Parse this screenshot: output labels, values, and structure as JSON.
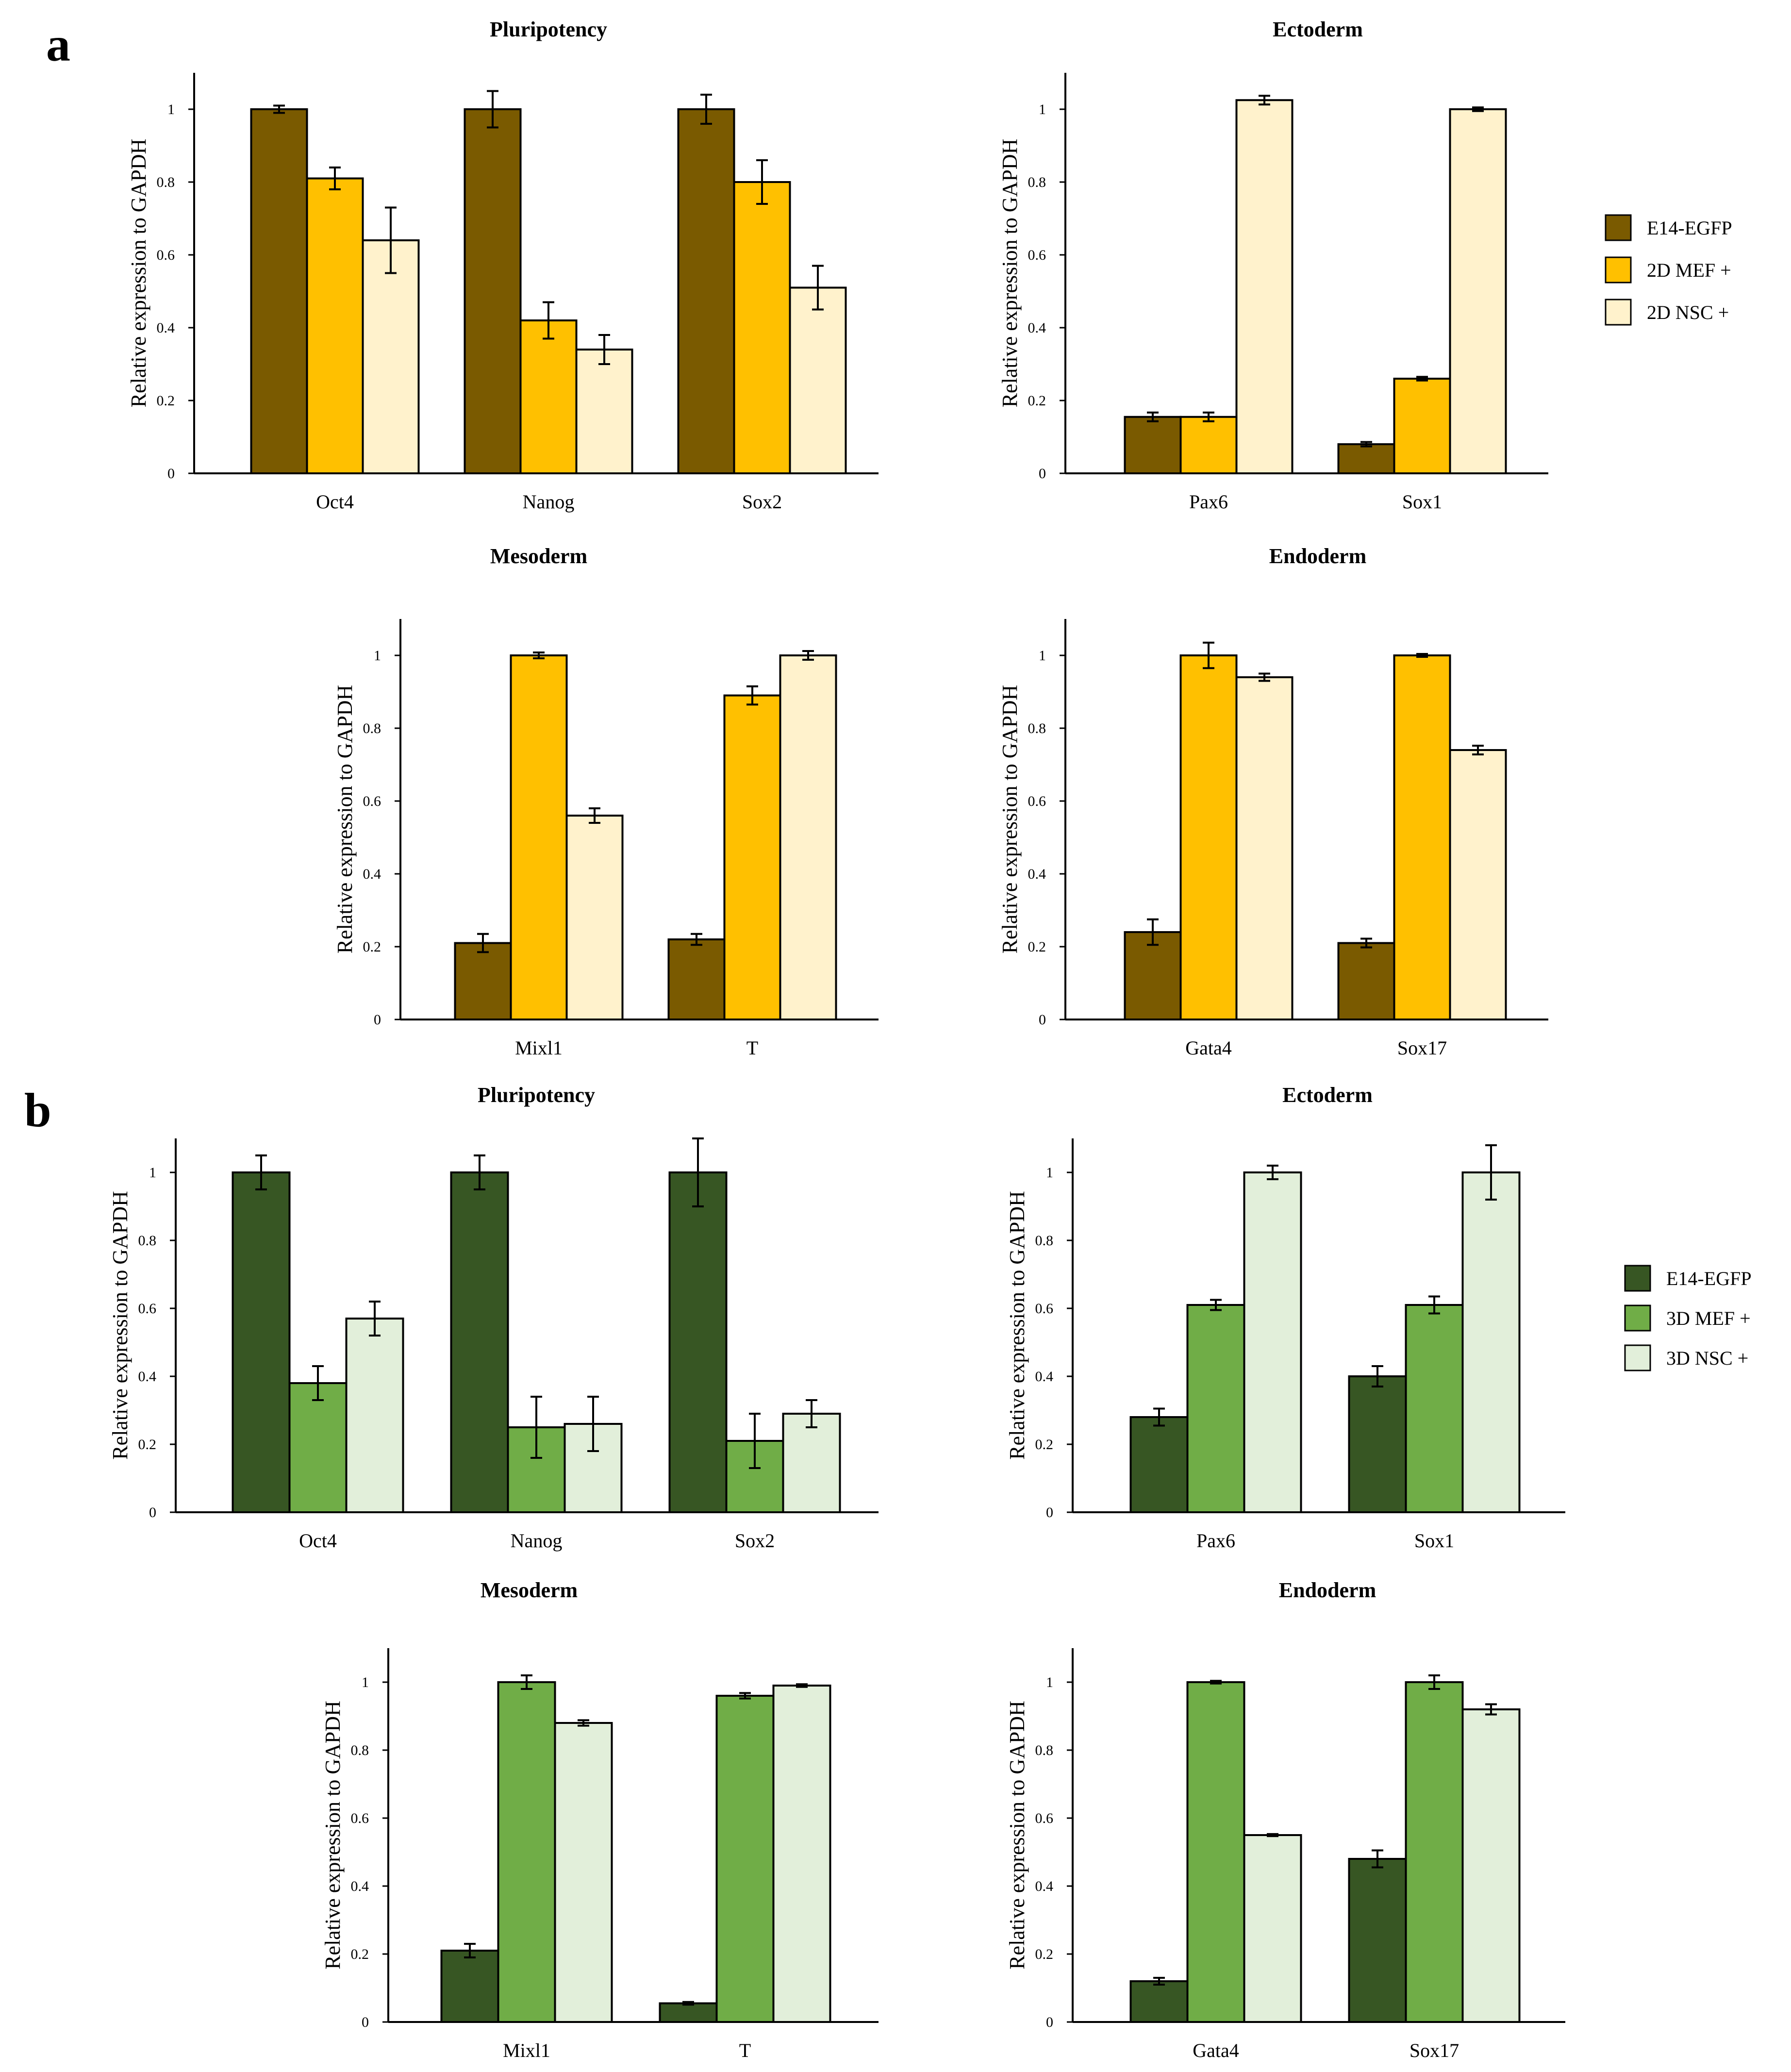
{
  "panels": [
    {
      "letter": "a",
      "legend": [
        {
          "name": "E14-EGFP",
          "color": "#7a5a00"
        },
        {
          "name": "2D MEF  +",
          "color": "#ffc000"
        },
        {
          "name": "2D NSC +",
          "color": "#fff2cc"
        }
      ]
    },
    {
      "letter": "b",
      "legend": [
        {
          "name": "E14-EGFP",
          "color": "#375623"
        },
        {
          "name": "3D MEF  +",
          "color": "#70ad47"
        },
        {
          "name": "3D NSC +",
          "color": "#e2efda"
        }
      ]
    }
  ],
  "chart_data": [
    {
      "id": "a-pluripotency",
      "panel": "a",
      "type": "bar",
      "title": "Pluripotency",
      "ylabel": "Relative expression to GAPDH",
      "xlabel": "",
      "ylim": [
        0,
        1.1
      ],
      "yticks": [
        0,
        0.2,
        0.4,
        0.6,
        0.8,
        1
      ],
      "categories": [
        "Oct4",
        "Nanog",
        "Sox2"
      ],
      "series": [
        {
          "name": "E14-EGFP",
          "color": "#7a5a00",
          "values": [
            1.0,
            1.0,
            1.0
          ],
          "errors": [
            0.01,
            0.05,
            0.04
          ]
        },
        {
          "name": "2D MEF  +",
          "color": "#ffc000",
          "values": [
            0.81,
            0.42,
            0.8
          ],
          "errors": [
            0.03,
            0.05,
            0.06
          ]
        },
        {
          "name": "2D NSC +",
          "color": "#fff2cc",
          "values": [
            0.64,
            0.34,
            0.51
          ],
          "errors": [
            0.09,
            0.04,
            0.06
          ]
        }
      ]
    },
    {
      "id": "a-ectoderm",
      "panel": "a",
      "type": "bar",
      "title": "Ectoderm",
      "ylabel": "Relative expression to GAPDH",
      "xlabel": "",
      "ylim": [
        0,
        1.1
      ],
      "yticks": [
        0,
        0.2,
        0.4,
        0.6,
        0.8,
        1
      ],
      "categories": [
        "Pax6",
        "Sox1"
      ],
      "series": [
        {
          "name": "E14-EGFP",
          "color": "#7a5a00",
          "values": [
            0.155,
            0.08
          ],
          "errors": [
            0.012,
            0.006
          ]
        },
        {
          "name": "2D MEF  +",
          "color": "#ffc000",
          "values": [
            0.155,
            0.26
          ],
          "errors": [
            0.012,
            0.005
          ]
        },
        {
          "name": "2D NSC +",
          "color": "#fff2cc",
          "values": [
            1.025,
            1.0
          ],
          "errors": [
            0.012,
            0.005
          ]
        }
      ]
    },
    {
      "id": "a-mesoderm",
      "panel": "a",
      "type": "bar",
      "title": "Mesoderm",
      "ylabel": "Relative expression to GAPDH",
      "xlabel": "",
      "ylim": [
        0,
        1.1
      ],
      "yticks": [
        0,
        0.2,
        0.4,
        0.6,
        0.8,
        1
      ],
      "categories": [
        "Mixl1",
        "T"
      ],
      "series": [
        {
          "name": "E14-EGFP",
          "color": "#7a5a00",
          "values": [
            0.21,
            0.22
          ],
          "errors": [
            0.025,
            0.015
          ]
        },
        {
          "name": "2D MEF  +",
          "color": "#ffc000",
          "values": [
            1.0,
            0.89
          ],
          "errors": [
            0.008,
            0.025
          ]
        },
        {
          "name": "2D NSC +",
          "color": "#fff2cc",
          "values": [
            0.56,
            1.0
          ],
          "errors": [
            0.02,
            0.012
          ]
        }
      ]
    },
    {
      "id": "a-endoderm",
      "panel": "a",
      "type": "bar",
      "title": "Endoderm",
      "ylabel": "Relative expression to GAPDH",
      "xlabel": "",
      "ylim": [
        0,
        1.1
      ],
      "yticks": [
        0,
        0.2,
        0.4,
        0.6,
        0.8,
        1
      ],
      "categories": [
        "Gata4",
        "Sox17"
      ],
      "series": [
        {
          "name": "E14-EGFP",
          "color": "#7a5a00",
          "values": [
            0.24,
            0.21
          ],
          "errors": [
            0.035,
            0.012
          ]
        },
        {
          "name": "2D MEF  +",
          "color": "#ffc000",
          "values": [
            1.0,
            1.0
          ],
          "errors": [
            0.035,
            0.004
          ]
        },
        {
          "name": "2D NSC +",
          "color": "#fff2cc",
          "values": [
            0.94,
            0.74
          ],
          "errors": [
            0.01,
            0.012
          ]
        }
      ]
    },
    {
      "id": "b-pluripotency",
      "panel": "b",
      "type": "bar",
      "title": "Pluripotency",
      "ylabel": "Relative expression to GAPDH",
      "xlabel": "",
      "ylim": [
        0,
        1.1
      ],
      "yticks": [
        0,
        0.2,
        0.4,
        0.6,
        0.8,
        1
      ],
      "categories": [
        "Oct4",
        "Nanog",
        "Sox2"
      ],
      "series": [
        {
          "name": "E14-EGFP",
          "color": "#375623",
          "values": [
            1.0,
            1.0,
            1.0
          ],
          "errors": [
            0.05,
            0.05,
            0.1
          ]
        },
        {
          "name": "3D MEF  +",
          "color": "#70ad47",
          "values": [
            0.38,
            0.25,
            0.21
          ],
          "errors": [
            0.05,
            0.09,
            0.08
          ]
        },
        {
          "name": "3D NSC +",
          "color": "#e2efda",
          "values": [
            0.57,
            0.26,
            0.29
          ],
          "errors": [
            0.05,
            0.08,
            0.04
          ]
        }
      ]
    },
    {
      "id": "b-ectoderm",
      "panel": "b",
      "type": "bar",
      "title": "Ectoderm",
      "ylabel": "Relative expression to GAPDH",
      "xlabel": "",
      "ylim": [
        0,
        1.1
      ],
      "yticks": [
        0,
        0.2,
        0.4,
        0.6,
        0.8,
        1
      ],
      "categories": [
        "Pax6",
        "Sox1"
      ],
      "series": [
        {
          "name": "E14-EGFP",
          "color": "#375623",
          "values": [
            0.28,
            0.4
          ],
          "errors": [
            0.025,
            0.03
          ]
        },
        {
          "name": "3D MEF  +",
          "color": "#70ad47",
          "values": [
            0.61,
            0.61
          ],
          "errors": [
            0.015,
            0.025
          ]
        },
        {
          "name": "3D NSC +",
          "color": "#e2efda",
          "values": [
            1.0,
            1.0
          ],
          "errors": [
            0.02,
            0.08
          ]
        }
      ]
    },
    {
      "id": "b-mesoderm",
      "panel": "b",
      "type": "bar",
      "title": "Mesoderm",
      "ylabel": "Relative expression to GAPDH",
      "xlabel": "",
      "ylim": [
        0,
        1.1
      ],
      "yticks": [
        0,
        0.2,
        0.4,
        0.6,
        0.8,
        1
      ],
      "categories": [
        "Mixl1",
        "T"
      ],
      "series": [
        {
          "name": "E14-EGFP",
          "color": "#375623",
          "values": [
            0.21,
            0.055
          ],
          "errors": [
            0.02,
            0.004
          ]
        },
        {
          "name": "3D MEF  +",
          "color": "#70ad47",
          "values": [
            1.0,
            0.96
          ],
          "errors": [
            0.02,
            0.008
          ]
        },
        {
          "name": "3D NSC +",
          "color": "#e2efda",
          "values": [
            0.88,
            0.99
          ],
          "errors": [
            0.008,
            0.004
          ]
        }
      ]
    },
    {
      "id": "b-endoderm",
      "panel": "b",
      "type": "bar",
      "title": "Endoderm",
      "ylabel": "Relative expression to GAPDH",
      "xlabel": "",
      "ylim": [
        0,
        1.1
      ],
      "yticks": [
        0,
        0.2,
        0.4,
        0.6,
        0.8,
        1
      ],
      "categories": [
        "Gata4",
        "Sox17"
      ],
      "series": [
        {
          "name": "E14-EGFP",
          "color": "#375623",
          "values": [
            0.12,
            0.48
          ],
          "errors": [
            0.01,
            0.025
          ]
        },
        {
          "name": "3D MEF  +",
          "color": "#70ad47",
          "values": [
            1.0,
            1.0
          ],
          "errors": [
            0.004,
            0.02
          ]
        },
        {
          "name": "3D NSC +",
          "color": "#e2efda",
          "values": [
            0.55,
            0.92
          ],
          "errors": [
            0.003,
            0.015
          ]
        }
      ]
    }
  ]
}
